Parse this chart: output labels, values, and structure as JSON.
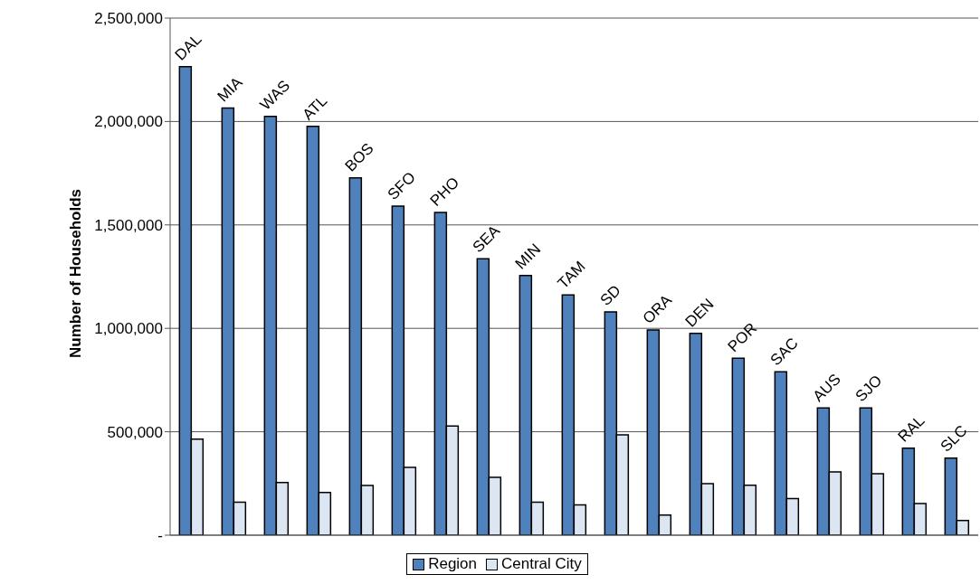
{
  "chart_data": {
    "type": "bar",
    "ylabel": "Number of Households",
    "categories": [
      "DAL",
      "MIA",
      "WAS",
      "ATL",
      "BOS",
      "SFO",
      "PHO",
      "SEA",
      "MIN",
      "TAM",
      "SD",
      "ORA",
      "DEN",
      "POR",
      "SAC",
      "AUS",
      "SJO",
      "RAL",
      "SLC"
    ],
    "series": [
      {
        "name": "Region",
        "color": "#4f81bd",
        "values": [
          2265000,
          2065000,
          2025000,
          1977000,
          1728000,
          1591000,
          1560000,
          1336000,
          1256000,
          1162000,
          1080000,
          992000,
          976000,
          856000,
          790000,
          615000,
          615000,
          421000,
          373000
        ]
      },
      {
        "name": "Central City",
        "color": "#dce6f2",
        "values": [
          464000,
          159000,
          255000,
          207000,
          240000,
          328000,
          528000,
          280000,
          159000,
          146000,
          485000,
          97000,
          249000,
          242000,
          177000,
          306000,
          297000,
          153000,
          71000
        ]
      }
    ],
    "ylim": [
      0,
      2500000
    ],
    "yticks": [
      {
        "value": 0,
        "label": "-"
      },
      {
        "value": 500000,
        "label": "500,000"
      },
      {
        "value": 1000000,
        "label": "1,000,000"
      },
      {
        "value": 1500000,
        "label": "1,500,000"
      },
      {
        "value": 2000000,
        "label": "2,000,000"
      },
      {
        "value": 2500000,
        "label": "2,500,000"
      }
    ],
    "grid": "y",
    "legend": "bottom",
    "tick_labels": "y"
  }
}
